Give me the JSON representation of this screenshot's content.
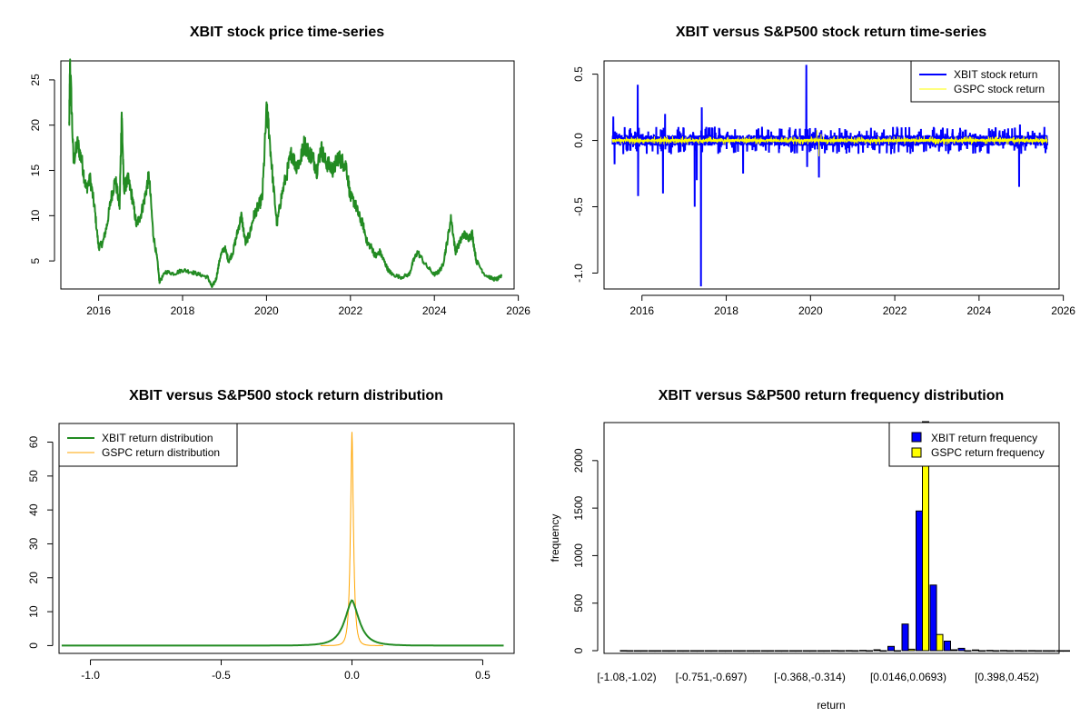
{
  "colors": {
    "price": "#228B22",
    "xbit_return": "#0000FF",
    "gspc_return": "#FFFF00",
    "xbit_density": "#228B22",
    "gspc_density": "#FFA500",
    "xbit_hist": "#0000FF",
    "gspc_hist": "#FFFF00"
  },
  "chart_data": [
    {
      "type": "line",
      "title": "XBIT stock price time-series",
      "xlabel": "",
      "ylabel": "",
      "xlim": [
        2015.1,
        2025.9
      ],
      "ylim": [
        1.9,
        27.1
      ],
      "xticks": [
        2016,
        2018,
        2020,
        2022,
        2024,
        2026
      ],
      "xtick_labels": [
        "2016",
        "2018",
        "2020",
        "2022",
        "2024",
        "2026"
      ],
      "yticks": [
        5,
        10,
        15,
        20,
        25
      ],
      "ytick_labels": [
        "5",
        "10",
        "15",
        "20",
        "25"
      ],
      "series": [
        {
          "name": "XBIT price",
          "x": [
            2015.3,
            2015.32,
            2015.4,
            2015.5,
            2015.6,
            2015.7,
            2015.8,
            2015.9,
            2016.0,
            2016.1,
            2016.2,
            2016.3,
            2016.4,
            2016.5,
            2016.55,
            2016.6,
            2016.7,
            2016.8,
            2016.9,
            2017.0,
            2017.1,
            2017.2,
            2017.3,
            2017.4,
            2017.45,
            2017.6,
            2017.8,
            2018.0,
            2018.2,
            2018.4,
            2018.6,
            2018.7,
            2018.8,
            2018.9,
            2019.0,
            2019.1,
            2019.2,
            2019.3,
            2019.4,
            2019.5,
            2019.6,
            2019.7,
            2019.8,
            2019.9,
            2020.0,
            2020.05,
            2020.15,
            2020.25,
            2020.35,
            2020.5,
            2020.6,
            2020.7,
            2020.8,
            2020.9,
            2021.0,
            2021.1,
            2021.2,
            2021.3,
            2021.4,
            2021.5,
            2021.6,
            2021.7,
            2021.8,
            2021.9,
            2022.0,
            2022.1,
            2022.2,
            2022.3,
            2022.4,
            2022.5,
            2022.6,
            2022.7,
            2022.8,
            2022.9,
            2023.0,
            2023.2,
            2023.4,
            2023.5,
            2023.6,
            2023.8,
            2024.0,
            2024.1,
            2024.2,
            2024.3,
            2024.4,
            2024.5,
            2024.6,
            2024.7,
            2024.8,
            2024.9,
            2025.0,
            2025.2,
            2025.4,
            2025.5,
            2025.6
          ],
          "values": [
            20,
            27,
            16,
            18,
            16,
            13,
            14,
            11,
            6.5,
            7,
            9,
            12,
            14,
            11,
            21.5,
            13,
            14,
            12,
            9,
            10,
            12,
            14.5,
            8,
            5,
            2.7,
            3.8,
            3.6,
            4,
            3.8,
            3.5,
            3.2,
            2.1,
            3,
            5.5,
            6.5,
            5,
            6,
            8,
            10,
            7,
            8,
            10,
            11,
            12,
            21.5,
            20,
            14,
            9,
            12,
            15,
            17,
            15.5,
            16,
            18,
            17,
            16.5,
            15,
            17.5,
            16,
            15.5,
            15,
            16.5,
            16,
            15.5,
            12,
            11.5,
            10,
            9,
            7,
            6.5,
            5.5,
            6,
            5,
            4,
            3.5,
            3.2,
            3.5,
            5,
            6,
            4.5,
            3.5,
            3.8,
            4.5,
            7,
            9.8,
            6,
            7,
            8,
            7.5,
            8,
            5,
            3.5,
            3,
            3,
            3.3
          ]
        }
      ]
    },
    {
      "type": "line",
      "title": "XBIT versus S&P500 stock return time-series",
      "xlabel": "",
      "ylabel": "",
      "xlim": [
        2015.1,
        2025.9
      ],
      "ylim": [
        -1.12,
        0.6
      ],
      "xticks": [
        2016,
        2018,
        2020,
        2022,
        2024,
        2026
      ],
      "xtick_labels": [
        "2016",
        "2018",
        "2020",
        "2022",
        "2024",
        "2026"
      ],
      "yticks": [
        0.5,
        0.0,
        -0.5,
        -1.0
      ],
      "ytick_labels": [
        "0.5",
        "0.0",
        "-0.5",
        "-1.0"
      ],
      "legend": [
        "XBIT stock return",
        "GSPC stock return"
      ],
      "legend_position": "top-right",
      "series": [
        {
          "name": "XBIT stock return",
          "x": [
            2015.32,
            2015.35,
            2015.9,
            2015.91,
            2016.5,
            2016.55,
            2017.25,
            2017.3,
            2017.4,
            2017.42,
            2018.4,
            2019.9,
            2019.92,
            2020.2,
            2024.95,
            2024.97
          ],
          "values": [
            0.18,
            -0.18,
            0.42,
            -0.42,
            -0.4,
            0.2,
            -0.5,
            -0.3,
            -1.1,
            0.25,
            -0.25,
            0.57,
            -0.2,
            -0.28,
            -0.35,
            0.12
          ],
          "noise_amplitude": 0.04
        },
        {
          "name": "GSPC stock return",
          "x": [
            2015.3,
            2020.15,
            2020.2,
            2020.25,
            2025.6
          ],
          "values": [
            0.0,
            0.08,
            -0.12,
            0.05,
            0.0
          ],
          "noise_amplitude": 0.012
        }
      ]
    },
    {
      "type": "line",
      "title": "XBIT versus S&P500 stock return distribution",
      "xlabel": "",
      "ylabel": "",
      "xlim": [
        -1.12,
        0.62
      ],
      "ylim": [
        -2.3,
        65.5
      ],
      "xticks": [
        -1.0,
        -0.5,
        0.0,
        0.5
      ],
      "xtick_labels": [
        "-1.0",
        "-0.5",
        "0.0",
        "0.5"
      ],
      "yticks": [
        0,
        10,
        20,
        30,
        40,
        50,
        60
      ],
      "ytick_labels": [
        "0",
        "10",
        "20",
        "30",
        "40",
        "50",
        "60"
      ],
      "legend": [
        "XBIT return distribution",
        "GSPC return distribution"
      ],
      "legend_position": "top-left",
      "series": [
        {
          "name": "XBIT return distribution",
          "x_range": [
            -1.11,
            0.58
          ],
          "peak": 13.5,
          "center": 0.0,
          "spread": 0.03
        },
        {
          "name": "GSPC return distribution",
          "x_range": [
            -0.12,
            0.12
          ],
          "peak": 63,
          "center": 0.0,
          "spread": 0.0063
        }
      ]
    },
    {
      "type": "bar",
      "title": "XBIT versus S&P500 return frequency distribution",
      "xlabel": "return",
      "ylabel": "frequency",
      "ylim": [
        0,
        2400
      ],
      "yticks": [
        0,
        500,
        1000,
        1500,
        2000
      ],
      "ytick_labels": [
        "0",
        "500",
        "1000",
        "1500",
        "2000"
      ],
      "xtick_labels": [
        {
          "index": 0,
          "label": "[-1.08,-1.02)"
        },
        {
          "index": 6,
          "label": "[-0.751,-0.697)"
        },
        {
          "index": 13,
          "label": "[-0.368,-0.314)"
        },
        {
          "index": 20,
          "label": "[0.0146,0.0693)"
        },
        {
          "index": 27,
          "label": "[0.398,0.452)"
        }
      ],
      "legend": [
        "XBIT return frequency",
        "GSPC return frequency"
      ],
      "legend_position": "top-right",
      "series": [
        {
          "name": "XBIT return frequency",
          "values": [
            1,
            0,
            0,
            0,
            0,
            0,
            0,
            0,
            0,
            0,
            0,
            0,
            0,
            0,
            0,
            1,
            1,
            3,
            10,
            45,
            280,
            1470,
            690,
            100,
            25,
            8,
            3,
            2,
            1,
            1,
            0,
            0
          ]
        },
        {
          "name": "GSPC return frequency",
          "values": [
            0,
            0,
            0,
            0,
            0,
            0,
            0,
            0,
            0,
            0,
            0,
            0,
            0,
            0,
            0,
            0,
            0,
            0,
            0,
            0,
            15,
            2420,
            170,
            10,
            0,
            0,
            0,
            0,
            0,
            0,
            0,
            0
          ]
        }
      ]
    }
  ]
}
